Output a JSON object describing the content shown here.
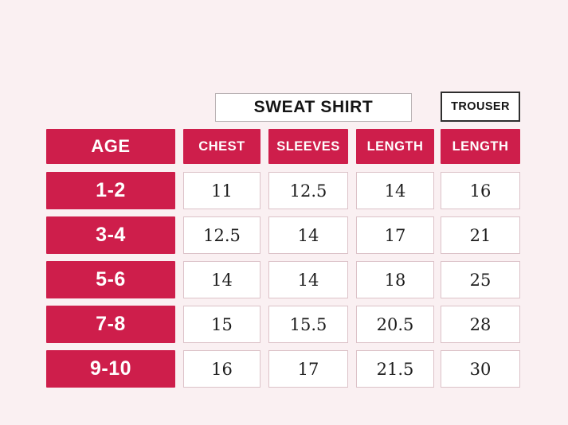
{
  "colors": {
    "background": "#FAF0F2",
    "accent": "#CE1E4B",
    "cell_border": "#DCC2C8",
    "trouser_border": "#2E2E2E",
    "sweatshirt_border": "#B9B2B4"
  },
  "sections": {
    "sweat_shirt_label": "SWEAT SHIRT",
    "trouser_label": "TROUSER"
  },
  "table": {
    "age_header": "AGE",
    "columns": [
      "CHEST",
      "SLEEVES",
      "LENGTH",
      "LENGTH"
    ],
    "rows": [
      {
        "age": "1-2",
        "values": [
          "11",
          "12.5",
          "14",
          "16"
        ]
      },
      {
        "age": "3-4",
        "values": [
          "12.5",
          "14",
          "17",
          "21"
        ]
      },
      {
        "age": "5-6",
        "values": [
          "14",
          "14",
          "18",
          "25"
        ]
      },
      {
        "age": "7-8",
        "values": [
          "15",
          "15.5",
          "20.5",
          "28"
        ]
      },
      {
        "age": "9-10",
        "values": [
          "16",
          "17",
          "21.5",
          "30"
        ]
      }
    ]
  },
  "chart_data": {
    "type": "table",
    "row_header": "AGE",
    "categories": [
      "1-2",
      "3-4",
      "5-6",
      "7-8",
      "9-10"
    ],
    "groups": [
      {
        "name": "SWEAT SHIRT",
        "columns": [
          "CHEST",
          "SLEEVES",
          "LENGTH"
        ]
      },
      {
        "name": "TROUSER",
        "columns": [
          "LENGTH"
        ]
      }
    ],
    "series": [
      {
        "name": "SWEAT SHIRT CHEST",
        "values": [
          11,
          12.5,
          14,
          15,
          16
        ]
      },
      {
        "name": "SWEAT SHIRT SLEEVES",
        "values": [
          12.5,
          14,
          14,
          15.5,
          17
        ]
      },
      {
        "name": "SWEAT SHIRT LENGTH",
        "values": [
          14,
          17,
          18,
          20.5,
          21.5
        ]
      },
      {
        "name": "TROUSER LENGTH",
        "values": [
          16,
          21,
          25,
          28,
          30
        ]
      }
    ]
  }
}
